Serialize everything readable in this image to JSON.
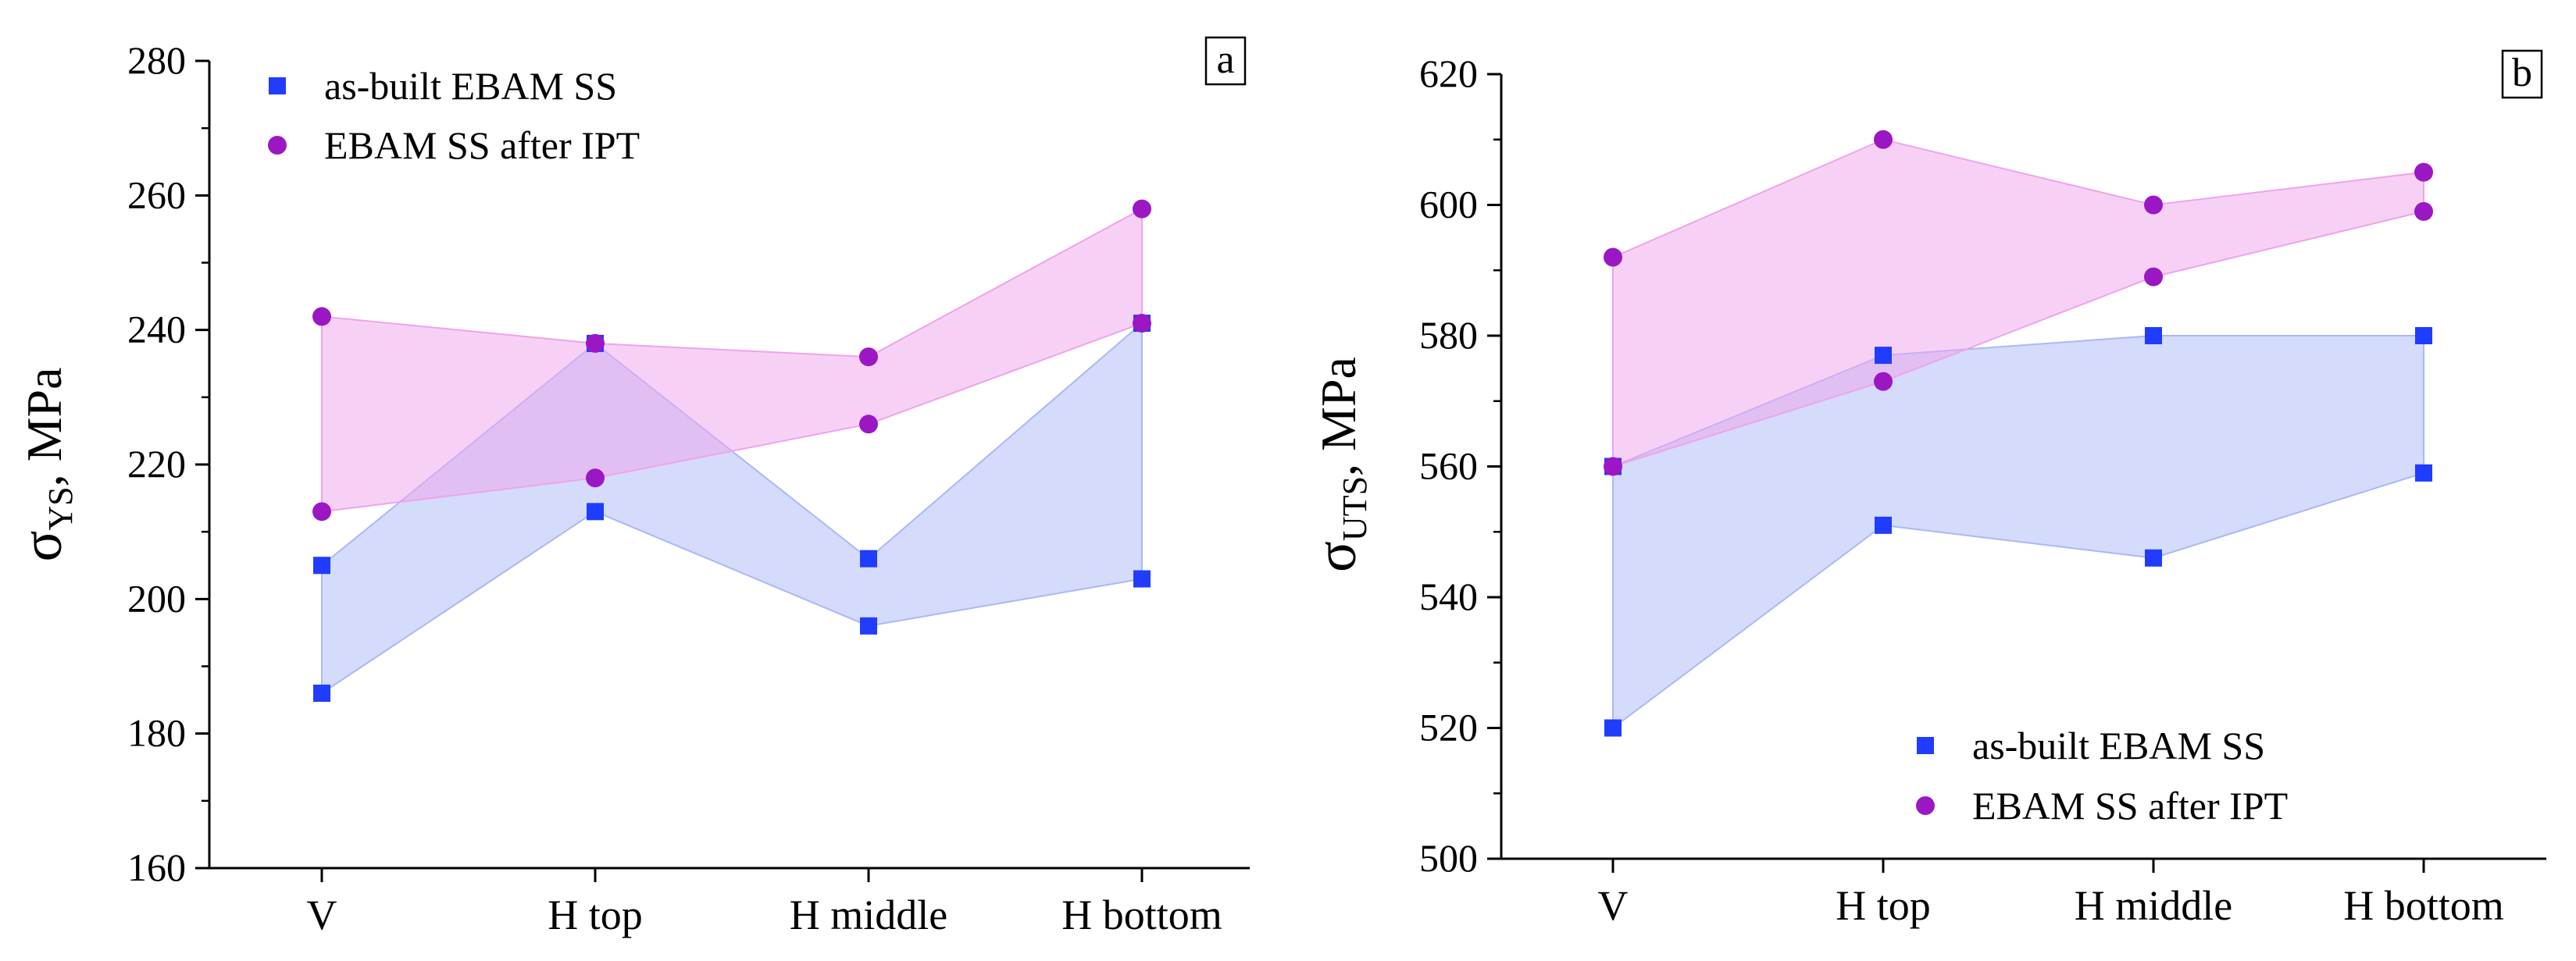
{
  "chart_data": [
    {
      "panel_label": "a",
      "type": "area",
      "title": "",
      "ylabel": "σYS, MPa",
      "ylabel_main": "σ",
      "ylabel_sub": "YS",
      "ylabel_tail": ", MPa",
      "xlabel": "",
      "categories": [
        "V",
        "H top",
        "H middle",
        "H bottom"
      ],
      "ylim": [
        160,
        280
      ],
      "yticks": [
        160,
        180,
        200,
        220,
        240,
        260,
        280
      ],
      "legend_position": "top-left",
      "series": [
        {
          "name": "as-built EBAM SS",
          "marker": "square",
          "color": "#1f3cff",
          "fill": "#aab8f7",
          "low": [
            186,
            213,
            196,
            203
          ],
          "high": [
            205,
            238,
            206,
            241
          ]
        },
        {
          "name": "EBAM SS after IPT",
          "marker": "circle",
          "color": "#9b17c4",
          "fill": "#efa3ec",
          "low": [
            213,
            218,
            226,
            241
          ],
          "high": [
            242,
            238,
            236,
            258
          ]
        }
      ]
    },
    {
      "panel_label": "b",
      "type": "area",
      "title": "",
      "ylabel": "σUTS, MPa",
      "ylabel_main": "σ",
      "ylabel_sub": "UTS",
      "ylabel_tail": ", MPa",
      "xlabel": "",
      "categories": [
        "V",
        "H top",
        "H middle",
        "H bottom"
      ],
      "ylim": [
        500,
        620
      ],
      "yticks": [
        500,
        520,
        540,
        560,
        580,
        600,
        620
      ],
      "legend_position": "bottom-right",
      "series": [
        {
          "name": "as-built EBAM SS",
          "marker": "square",
          "color": "#1f3cff",
          "fill": "#aab8f7",
          "low": [
            520,
            551,
            546,
            559
          ],
          "high": [
            560,
            577,
            580,
            580
          ]
        },
        {
          "name": "EBAM SS after IPT",
          "marker": "circle",
          "color": "#9b17c4",
          "fill": "#efa3ec",
          "low": [
            560,
            573,
            589,
            599
          ],
          "high": [
            592,
            610,
            600,
            605
          ]
        }
      ]
    }
  ]
}
